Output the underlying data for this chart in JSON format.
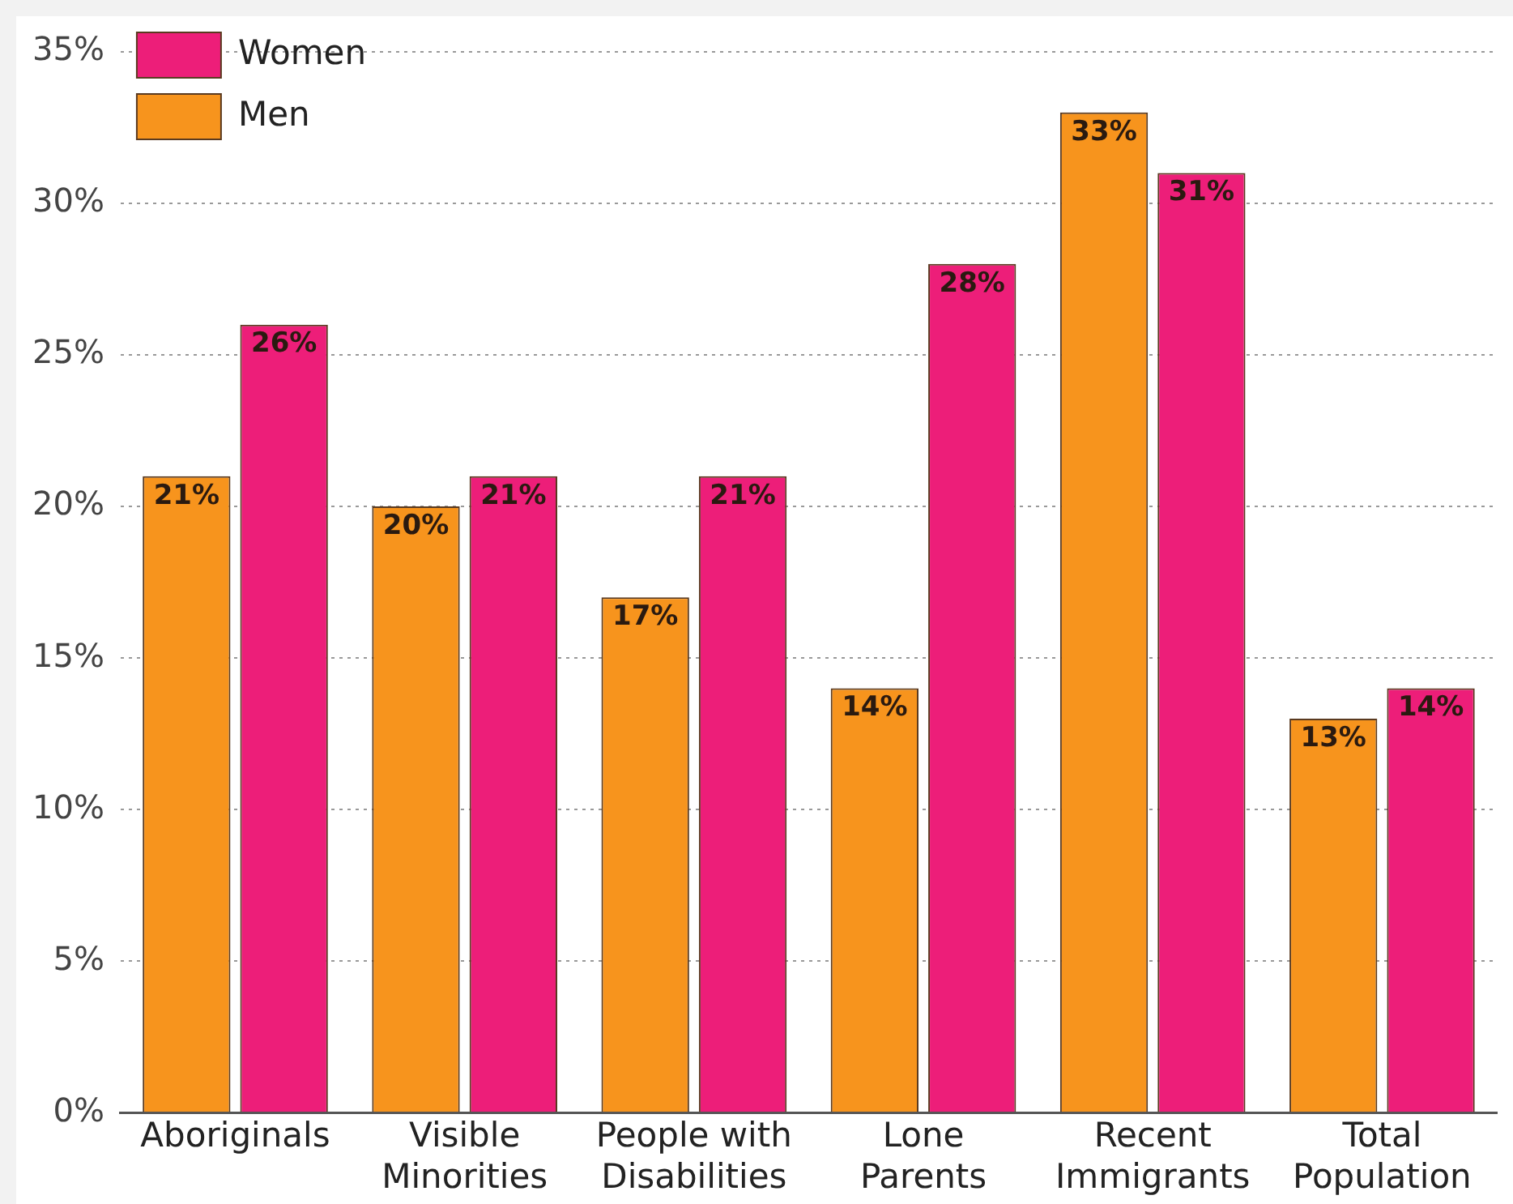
{
  "chart_data": {
    "type": "bar",
    "categories": [
      "Aboriginals",
      "Visible Minorities",
      "People with Disabilities",
      "Lone Parents",
      "Recent Immigrants",
      "Total Population"
    ],
    "series": [
      {
        "name": "Men",
        "color": "#f7941d",
        "values": [
          21,
          20,
          17,
          14,
          33,
          13
        ],
        "value_labels": [
          "21%",
          "20%",
          "17%",
          "14%",
          "33%",
          "13%"
        ]
      },
      {
        "name": "Women",
        "color": "#ed1e79",
        "values": [
          26,
          21,
          21,
          28,
          31,
          14
        ],
        "value_labels": [
          "26%",
          "21%",
          "21%",
          "28%",
          "31%",
          "14%"
        ]
      }
    ],
    "ylim": [
      0,
      35
    ],
    "yticks": [
      {
        "value": 0,
        "label": "0%"
      },
      {
        "value": 5,
        "label": "5%"
      },
      {
        "value": 10,
        "label": "10%"
      },
      {
        "value": 15,
        "label": "15%"
      },
      {
        "value": 20,
        "label": "20%"
      },
      {
        "value": 25,
        "label": "25%"
      },
      {
        "value": 30,
        "label": "30%"
      },
      {
        "value": 35,
        "label": "35%"
      }
    ],
    "grid": "y",
    "legend": "top left"
  }
}
